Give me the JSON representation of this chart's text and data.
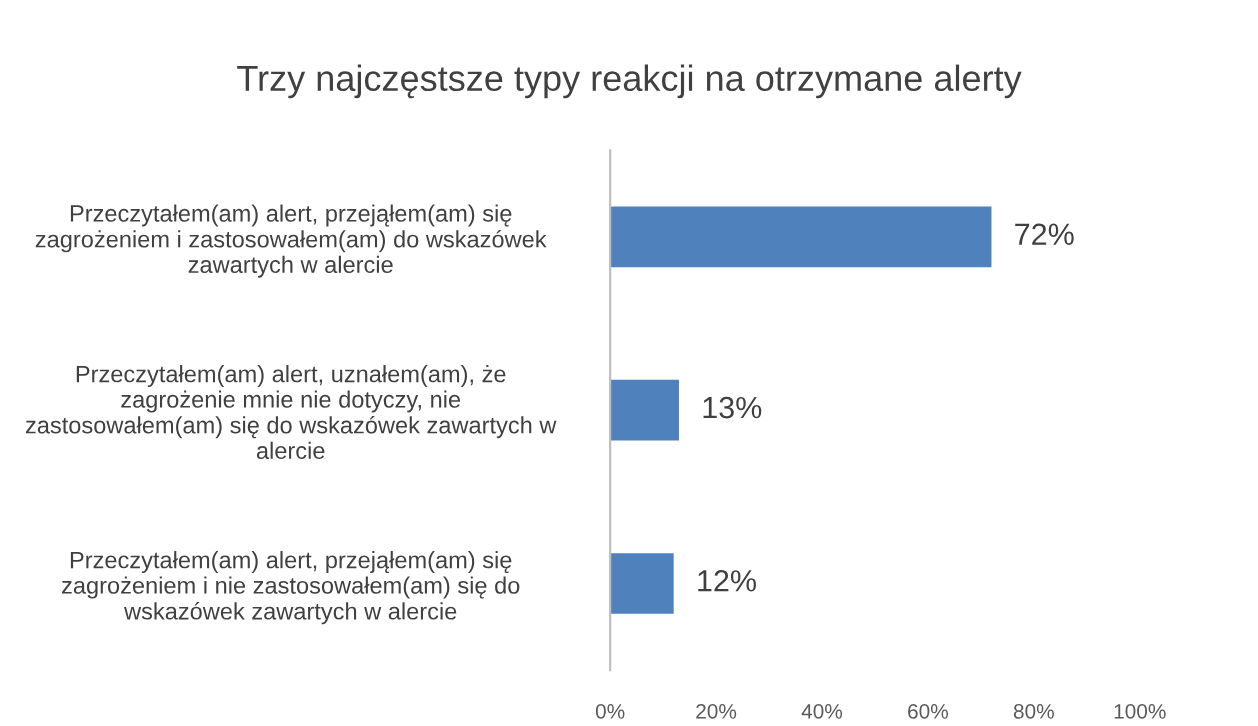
{
  "chart_data": {
    "type": "bar",
    "orientation": "horizontal",
    "title": "Trzy najczęstsze typy reakcji na otrzymane alerty",
    "categories": [
      "Przeczytałem(am) alert, przejąłem(am) się\nzagrożeniem i zastosowałem(am) do wskazówek\nzawartych w alercie",
      "Przeczytałem(am) alert, uznałem(am), że\nzagrożenie mnie nie dotyczy, nie\nzastosowałem(am) się do wskazówek zawartych w\nalercie",
      "Przeczytałem(am) alert, przejąłem(am) się\nzagrożeniem i nie zastosowałem(am) się do\nwskazówek zawartych w alercie"
    ],
    "values": [
      72,
      13,
      12
    ],
    "value_labels": [
      "72%",
      "13%",
      "12%"
    ],
    "color": "#4f81bd",
    "xlim": [
      0,
      100
    ],
    "xticks": [
      {
        "value": 0,
        "label": "0%"
      },
      {
        "value": 20,
        "label": "20%"
      },
      {
        "value": 40,
        "label": "40%"
      },
      {
        "value": 60,
        "label": "60%"
      },
      {
        "value": 80,
        "label": "80%"
      },
      {
        "value": 100,
        "label": "100%"
      }
    ],
    "grid": false,
    "legend": false
  }
}
